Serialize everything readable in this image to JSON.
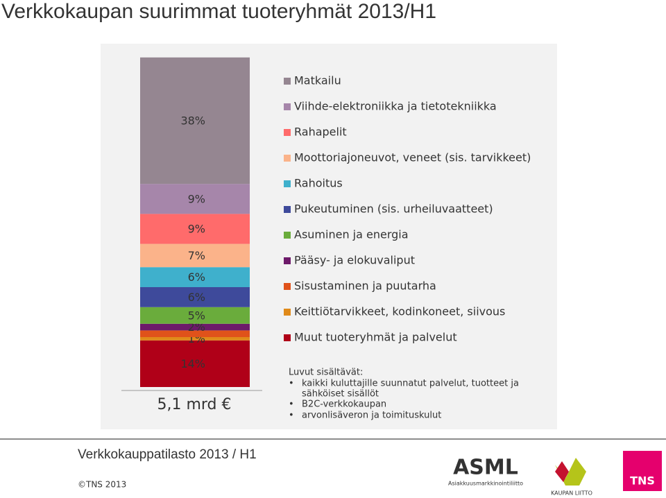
{
  "title": "Verkkokaupan suurimmat tuoteryhmät 2013/H1",
  "chart_data": {
    "type": "stacked_bar",
    "total": "5,1 mrd €",
    "series": [
      {
        "name": "Matkailu",
        "color": "#958691",
        "values": [
          38
        ],
        "value_labels": [
          "38%"
        ]
      },
      {
        "name": "Viihde-elektroniikka ja tietotekniikka",
        "color": "#a686aa",
        "values": [
          9
        ],
        "value_labels": [
          "9%"
        ]
      },
      {
        "name": "Rahapelit",
        "color": "#ff6b6b",
        "values": [
          9
        ],
        "value_labels": [
          "9%"
        ]
      },
      {
        "name": "Moottoriajoneuvot, veneet (sis. tarvikkeet)",
        "color": "#fbb38a",
        "values": [
          7
        ],
        "value_labels": [
          "7%"
        ]
      },
      {
        "name": "Rahoitus",
        "color": "#3fb0cc",
        "values": [
          6
        ],
        "value_labels": [
          "6%"
        ]
      },
      {
        "name": "Pukeutuminen (sis. urheiluvaatteet)",
        "color": "#3e4a9b",
        "values": [
          6
        ],
        "value_labels": [
          "6%"
        ]
      },
      {
        "name": "Asuminen ja energia",
        "color": "#6aac3c",
        "values": [
          5
        ],
        "value_labels": [
          "5%"
        ]
      },
      {
        "name": "Pääsy- ja elokuvaliput",
        "color": "#6d1a6a",
        "values": [
          2
        ],
        "value_labels": [
          "2%"
        ]
      },
      {
        "name": "Sisustaminen ja puutarha",
        "color": "#e0521a",
        "values": [
          2
        ]
      },
      {
        "name": "Keittiötarvikkeet, kodinkoneet, siivous",
        "color": "#e08a1a",
        "values": [
          1
        ],
        "value_labels": [
          "1%"
        ]
      },
      {
        "name": "Muut tuoteryhmät ja palvelut",
        "color": "#b00018",
        "values": [
          14
        ],
        "value_labels": [
          "14%"
        ]
      }
    ]
  },
  "notes": {
    "heading": "Luvut sisältävät:",
    "items": [
      "kaikki kuluttajille suunnatut palvelut, tuotteet ja",
      "sähköiset sisällöt",
      "B2C-verkkokaupan",
      "arvonlisäveron ja toimituskulut"
    ]
  },
  "footer": {
    "source": "Verkkokauppatilasto 2013 / H1",
    "copyright": "©TNS 2013"
  },
  "logos": {
    "asml": "ASML",
    "asml_sub": "Asiakkuusmarkkinointiliitto",
    "kauppa": "KAUPAN LIITTO",
    "tns": "TNS"
  }
}
